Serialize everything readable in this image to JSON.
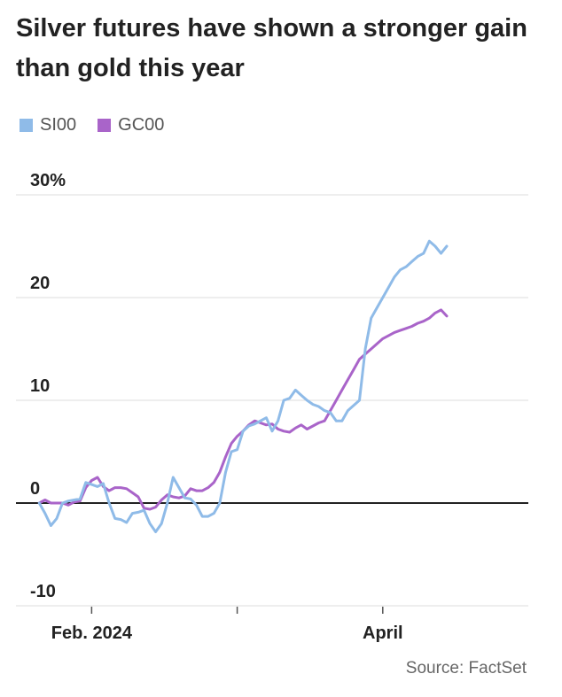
{
  "title": "Silver futures have shown a stronger gain than gold this year",
  "source": "Source: FactSet",
  "colors": {
    "silver": "#8fbbe8",
    "gold": "#a964c9",
    "grid": "#dddddd",
    "zero": "#222222",
    "axis": "#555555"
  },
  "chart_data": {
    "type": "line",
    "title": "Silver futures have shown a stronger gain than gold this year",
    "xlabel": "",
    "ylabel": "",
    "xlim": [
      -4,
      84
    ],
    "ylim": [
      -10,
      30
    ],
    "y_ticks": [
      {
        "value": 30,
        "label": "30%"
      },
      {
        "value": 20,
        "label": "20"
      },
      {
        "value": 10,
        "label": "10"
      },
      {
        "value": 0,
        "label": "0"
      },
      {
        "value": -10,
        "label": "-10"
      }
    ],
    "x_ticks": [
      {
        "value": 9,
        "label": "Feb. 2024"
      },
      {
        "value": 34,
        "label": ""
      },
      {
        "value": 59,
        "label": "April"
      }
    ],
    "legend_position": "top-left",
    "grid": true,
    "series": [
      {
        "name": "SI00",
        "color": "#8fbbe8",
        "x": [
          0,
          1,
          2,
          3,
          4,
          5,
          6,
          7,
          8,
          9,
          10,
          11,
          12,
          13,
          14,
          15,
          16,
          17,
          18,
          19,
          20,
          21,
          22,
          23,
          24,
          25,
          26,
          27,
          28,
          29,
          30,
          31,
          32,
          33,
          34,
          35,
          36,
          37,
          38,
          39,
          40,
          41,
          42,
          43,
          44,
          45,
          46,
          47,
          48,
          49,
          50,
          51,
          52,
          53,
          54,
          55,
          56,
          57,
          58,
          59,
          60,
          61,
          62,
          63,
          64,
          65,
          66,
          67,
          68,
          69,
          70
        ],
        "y": [
          0,
          -1,
          -2.2,
          -1.5,
          0,
          0.2,
          0.3,
          0.4,
          2,
          1.8,
          1.6,
          1.9,
          0,
          -1.5,
          -1.6,
          -1.9,
          -1,
          -0.9,
          -0.7,
          -2,
          -2.8,
          -2,
          0,
          2.5,
          1.5,
          0.5,
          0.4,
          -0.2,
          -1.3,
          -1.3,
          -1,
          0,
          3,
          5,
          5.2,
          7,
          7.5,
          7.7,
          8,
          8.3,
          7,
          8,
          10,
          10.2,
          11,
          10.5,
          10,
          9.6,
          9.4,
          9,
          8.8,
          8,
          8,
          9,
          9.5,
          10,
          15,
          18,
          19,
          20,
          21,
          22,
          22.7,
          23,
          23.5,
          24,
          24.3,
          25.5,
          25,
          24.3,
          25
        ]
      },
      {
        "name": "GC00",
        "color": "#a964c9",
        "x": [
          0,
          1,
          2,
          3,
          4,
          5,
          6,
          7,
          8,
          9,
          10,
          11,
          12,
          13,
          14,
          15,
          16,
          17,
          18,
          19,
          20,
          21,
          22,
          23,
          24,
          25,
          26,
          27,
          28,
          29,
          30,
          31,
          32,
          33,
          34,
          35,
          36,
          37,
          38,
          39,
          40,
          41,
          42,
          43,
          44,
          45,
          46,
          47,
          48,
          49,
          50,
          51,
          52,
          53,
          54,
          55,
          56,
          57,
          58,
          59,
          60,
          61,
          62,
          63,
          64,
          65,
          66,
          67,
          68,
          69,
          70
        ],
        "y": [
          0,
          0.3,
          0,
          0,
          0,
          -0.2,
          0.1,
          0.2,
          1.5,
          2.2,
          2.5,
          1.6,
          1.2,
          1.5,
          1.5,
          1.4,
          1,
          0.6,
          -0.5,
          -0.6,
          -0.4,
          0.3,
          0.8,
          0.6,
          0.5,
          0.7,
          1.4,
          1.2,
          1.2,
          1.5,
          2,
          3,
          4.5,
          5.8,
          6.5,
          7,
          7.6,
          8,
          7.8,
          7.6,
          7.7,
          7.2,
          7,
          6.9,
          7.3,
          7.6,
          7.2,
          7.5,
          7.8,
          8,
          9,
          10,
          11,
          12,
          13,
          14,
          14.5,
          15,
          15.5,
          16,
          16.3,
          16.6,
          16.8,
          17,
          17.2,
          17.5,
          17.7,
          18,
          18.5,
          18.8,
          18.2
        ]
      }
    ]
  }
}
